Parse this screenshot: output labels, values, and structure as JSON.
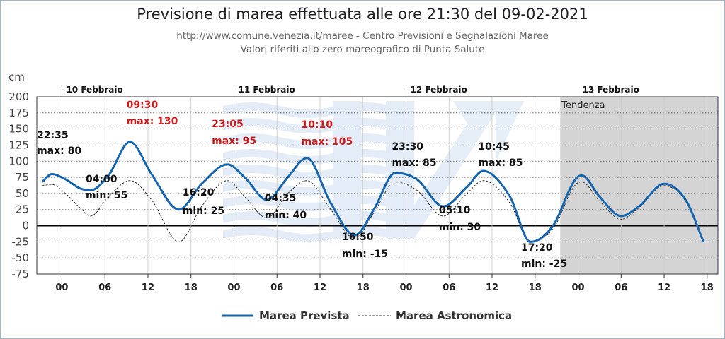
{
  "header": {
    "title": "Previsione di marea effettuata alle ore 21:30 del 09-02-2021",
    "subtitle1": "http://www.comune.venezia.it/maree - Centro Previsioni e Segnalazioni Maree",
    "subtitle2": "Valori riferiti allo zero mareografico di Punta Salute"
  },
  "chart_data": {
    "type": "line",
    "ylabel": "cm",
    "ylim": [
      -75,
      200
    ],
    "ytick_step": 25,
    "xlim_hours": [
      -3.5,
      91.5
    ],
    "x_tick_hours": [
      0,
      6,
      12,
      18,
      24,
      30,
      36,
      42,
      48,
      54,
      60,
      66,
      72,
      78,
      84,
      90
    ],
    "x_tick_labels": [
      "00",
      "06",
      "12",
      "18",
      "00",
      "06",
      "12",
      "18",
      "00",
      "06",
      "12",
      "18",
      "00",
      "06",
      "12",
      "18"
    ],
    "days": [
      {
        "label": "10 Febbraio",
        "hour": 0
      },
      {
        "label": "11 Febbraio",
        "hour": 24
      },
      {
        "label": "12 Febbraio",
        "hour": 48
      },
      {
        "label": "13 Febbraio",
        "hour": 72
      }
    ],
    "trend_region": {
      "label": "Tendenza",
      "start_hour": 69.5
    },
    "series": [
      {
        "name": "Marea Prevista",
        "color": "#1565b0",
        "x": [
          -2.75,
          -1.42,
          0.5,
          2.5,
          4.0,
          6.5,
          9.5,
          12.5,
          16.33,
          19.5,
          23.08,
          25.5,
          28.58,
          31.5,
          34.17,
          37.5,
          40.83,
          43.5,
          46.5,
          49.5,
          53.17,
          56.5,
          58.75,
          62.5,
          65.33,
          68.5,
          71.5,
          72.5,
          75.0,
          78.0,
          80.5,
          84.0,
          87.0,
          89.5
        ],
        "values": [
          68,
          80,
          72,
          58,
          55,
          78,
          130,
          80,
          25,
          65,
          95,
          75,
          40,
          75,
          105,
          35,
          -15,
          25,
          82,
          72,
          30,
          60,
          85,
          45,
          -25,
          0,
          70,
          78,
          45,
          15,
          30,
          65,
          40,
          -25
        ]
      },
      {
        "name": "Marea Astronomica",
        "color": "#333333",
        "dashed": true,
        "x": [
          -2.75,
          -1.42,
          0.5,
          2.5,
          4.0,
          6.5,
          9.5,
          12.5,
          16.33,
          19.5,
          23.08,
          25.5,
          28.58,
          31.5,
          34.17,
          37.5,
          40.83,
          43.5,
          46.5,
          49.5,
          53.17,
          56.5,
          58.75,
          62.5,
          65.33,
          68.5,
          71.5,
          72.5,
          75.0,
          78.0,
          80.5,
          84.0,
          87.0,
          89.5
        ],
        "values": [
          62,
          64,
          50,
          28,
          15,
          45,
          70,
          40,
          -25,
          30,
          70,
          45,
          12,
          50,
          70,
          25,
          -20,
          20,
          68,
          55,
          15,
          50,
          70,
          35,
          -25,
          -5,
          62,
          68,
          38,
          10,
          28,
          62,
          38,
          -25
        ]
      }
    ],
    "annotations": [
      {
        "time": "22:35",
        "label": "max: 80",
        "color": "#111111",
        "hour": -1.42,
        "value": 80
      },
      {
        "time": "04:00",
        "label": "min: 55",
        "color": "#111111",
        "hour": 4.0,
        "value": 55
      },
      {
        "time": "09:30",
        "label": "max: 130",
        "color": "#d01818",
        "hour": 9.5,
        "value": 130
      },
      {
        "time": "16:20",
        "label": "min: 25",
        "color": "#111111",
        "hour": 16.33,
        "value": 25
      },
      {
        "time": "23:05",
        "label": "max: 95",
        "color": "#d01818",
        "hour": 23.08,
        "value": 95
      },
      {
        "time": "04:35",
        "label": "min: 40",
        "color": "#111111",
        "hour": 28.58,
        "value": 40
      },
      {
        "time": "10:10",
        "label": "max: 105",
        "color": "#d01818",
        "hour": 34.17,
        "value": 105
      },
      {
        "time": "16:50",
        "label": "min: -15",
        "color": "#111111",
        "hour": 40.83,
        "value": -15
      },
      {
        "time": "23:30",
        "label": "max: 85",
        "color": "#111111",
        "hour": 47.5,
        "value": 85
      },
      {
        "time": "05:10",
        "label": "min: 30",
        "color": "#111111",
        "hour": 53.17,
        "value": 30
      },
      {
        "time": "10:45",
        "label": "max: 85",
        "color": "#111111",
        "hour": 58.75,
        "value": 85
      },
      {
        "time": "17:20",
        "label": "min: -25",
        "color": "#111111",
        "hour": 65.33,
        "value": -25
      }
    ],
    "legend": [
      "Marea Prevista",
      "Marea Astronomica"
    ]
  }
}
